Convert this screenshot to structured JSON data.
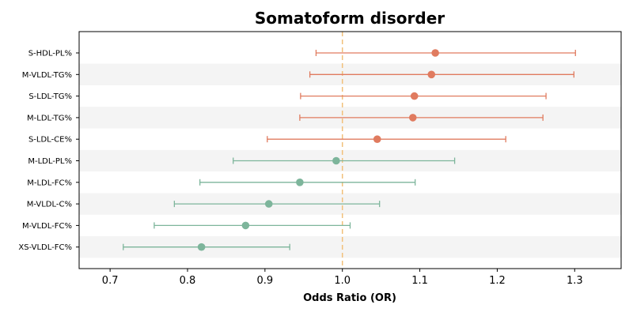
{
  "chart_data": {
    "type": "forest",
    "title": "Somatoform disorder",
    "xlabel": "Odds Ratio (OR)",
    "ylabel": "",
    "xlim": [
      0.66,
      1.36
    ],
    "xticks": [
      0.7,
      0.8,
      0.9,
      1.0,
      1.1,
      1.2,
      1.3
    ],
    "xtick_labels": [
      "0.7",
      "0.8",
      "0.9",
      "1.0",
      "1.1",
      "1.2",
      "1.3"
    ],
    "reference_line": 1.0,
    "grid": false,
    "alternating_row_shading": true,
    "colors": {
      "positive": "#E07B5F",
      "negative": "#7DB59B",
      "reference_line": "#F2C07A",
      "row_band": "#F4F4F4"
    },
    "categories": [
      "S-HDL-PL%",
      "M-VLDL-TG%",
      "S-LDL-TG%",
      "M-LDL-TG%",
      "S-LDL-CE%",
      "M-LDL-PL%",
      "M-LDL-FC%",
      "M-VLDL-C%",
      "M-VLDL-FC%",
      "XS-VLDL-FC%"
    ],
    "or": [
      1.12,
      1.115,
      1.093,
      1.091,
      1.045,
      0.992,
      0.945,
      0.905,
      0.875,
      0.818
    ],
    "ci_lower": [
      0.966,
      0.958,
      0.946,
      0.945,
      0.903,
      0.859,
      0.816,
      0.783,
      0.757,
      0.717
    ],
    "ci_upper": [
      1.301,
      1.299,
      1.263,
      1.259,
      1.211,
      1.145,
      1.094,
      1.048,
      1.01,
      0.932
    ],
    "direction": [
      "positive",
      "positive",
      "positive",
      "positive",
      "positive",
      "negative",
      "negative",
      "negative",
      "negative",
      "negative"
    ]
  }
}
